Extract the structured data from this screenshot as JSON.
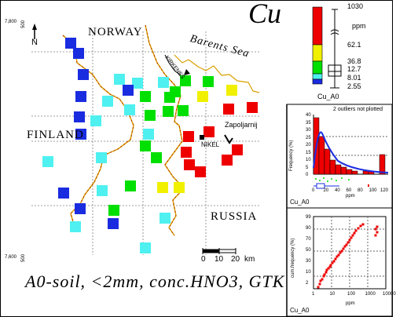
{
  "map": {
    "element": "Cu",
    "countries": {
      "norway": "NORWAY",
      "finland": "FINLAND",
      "russia": "RUSSIA"
    },
    "sea": "Barents Sea",
    "places": {
      "kirkenes": "KIRKENES",
      "zapoljarnij": "Zapoljarnij",
      "nikel": "NIKEL"
    },
    "north_label": "N",
    "coord_top": "7,800",
    "coord_bottom": "7,600",
    "coord_side_top": "500",
    "coord_side_bottom": "500",
    "scale": {
      "label": "km",
      "ticks": [
        "0",
        "10",
        "20"
      ]
    },
    "footer": "A0-soil, <2mm, conc.HNO3, GTK",
    "colors": {
      "blue": "#1a2ce0",
      "cyan": "#4ff0f0",
      "green": "#00e000",
      "yellow": "#f0f000",
      "red": "#ee0000"
    }
  },
  "legend": {
    "unit": "ppm",
    "values": [
      "1030",
      "62.1",
      "36.8",
      "12.7",
      "8.01",
      "2.55"
    ],
    "caption": "Cu_A0"
  },
  "histogram": {
    "note": "2 outliers not plotted",
    "ylabel": "Frequency (%)",
    "xlabel": "ppm",
    "yticks": [
      "40",
      "35",
      "30",
      "25",
      "20",
      "15",
      "10",
      "5",
      "0"
    ],
    "xticks": [
      "0",
      "20",
      "40",
      "60",
      "80",
      "100",
      "120"
    ],
    "caption": "Cu_A0"
  },
  "cdf": {
    "ylabel": "cum.frequency (%)",
    "xlabel": "ppm",
    "yticks": [
      "99",
      "90",
      "70",
      "50",
      "30",
      "10",
      "2"
    ],
    "xticks": [
      "1",
      "10",
      "100",
      "1000",
      "10000"
    ],
    "caption": "Cu_A0"
  },
  "samples": [
    {
      "x": 90,
      "y": 55,
      "c": "blue"
    },
    {
      "x": 100,
      "y": 68,
      "c": "blue"
    },
    {
      "x": 106,
      "y": 95,
      "c": "blue"
    },
    {
      "x": 103,
      "y": 123,
      "c": "blue"
    },
    {
      "x": 152,
      "y": 101,
      "c": "cyan"
    },
    {
      "x": 137,
      "y": 129,
      "c": "cyan"
    },
    {
      "x": 175,
      "y": 106,
      "c": "cyan"
    },
    {
      "x": 208,
      "y": 105,
      "c": "cyan"
    },
    {
      "x": 163,
      "y": 115,
      "c": "blue"
    },
    {
      "x": 185,
      "y": 123,
      "c": "green"
    },
    {
      "x": 236,
      "y": 103,
      "c": "green"
    },
    {
      "x": 265,
      "y": 104,
      "c": "green"
    },
    {
      "x": 216,
      "y": 124,
      "c": "green"
    },
    {
      "x": 223,
      "y": 117,
      "c": "green"
    },
    {
      "x": 258,
      "y": 123,
      "c": "yellow"
    },
    {
      "x": 295,
      "y": 115,
      "c": "yellow"
    },
    {
      "x": 165,
      "y": 140,
      "c": "cyan"
    },
    {
      "x": 191,
      "y": 147,
      "c": "green"
    },
    {
      "x": 214,
      "y": 142,
      "c": "green"
    },
    {
      "x": 233,
      "y": 141,
      "c": "green"
    },
    {
      "x": 291,
      "y": 139,
      "c": "red"
    },
    {
      "x": 321,
      "y": 137,
      "c": "red"
    },
    {
      "x": 101,
      "y": 149,
      "c": "blue"
    },
    {
      "x": 122,
      "y": 154,
      "c": "cyan"
    },
    {
      "x": 189,
      "y": 171,
      "c": "cyan"
    },
    {
      "x": 103,
      "y": 171,
      "c": "blue"
    },
    {
      "x": 240,
      "y": 174,
      "c": "red"
    },
    {
      "x": 237,
      "y": 194,
      "c": "red"
    },
    {
      "x": 266,
      "y": 168,
      "c": "red"
    },
    {
      "x": 185,
      "y": 186,
      "c": "green"
    },
    {
      "x": 199,
      "y": 201,
      "c": "green"
    },
    {
      "x": 302,
      "y": 191,
      "c": "red"
    },
    {
      "x": 289,
      "y": 204,
      "c": "red"
    },
    {
      "x": 255,
      "y": 219,
      "c": "red"
    },
    {
      "x": 61,
      "y": 206,
      "c": "cyan"
    },
    {
      "x": 129,
      "y": 201,
      "c": "cyan"
    },
    {
      "x": 241,
      "y": 210,
      "c": "red"
    },
    {
      "x": 166,
      "y": 237,
      "c": "green"
    },
    {
      "x": 207,
      "y": 239,
      "c": "yellow"
    },
    {
      "x": 228,
      "y": 239,
      "c": "yellow"
    },
    {
      "x": 81,
      "y": 246,
      "c": "blue"
    },
    {
      "x": 130,
      "y": 243,
      "c": "cyan"
    },
    {
      "x": 102,
      "y": 266,
      "c": "blue"
    },
    {
      "x": 145,
      "y": 268,
      "c": "green"
    },
    {
      "x": 144,
      "y": 285,
      "c": "blue"
    },
    {
      "x": 96,
      "y": 289,
      "c": "cyan"
    },
    {
      "x": 210,
      "y": 278,
      "c": "cyan"
    },
    {
      "x": 185,
      "y": 316,
      "c": "cyan"
    }
  ]
}
